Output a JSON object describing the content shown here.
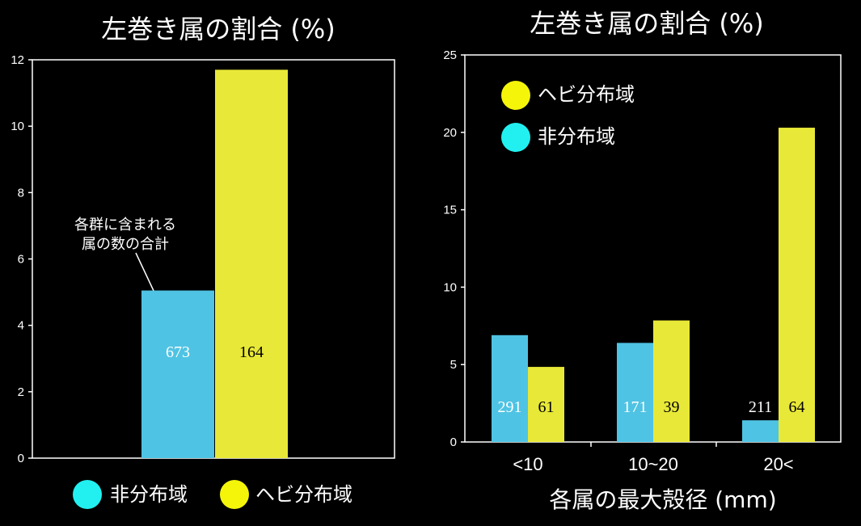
{
  "colors": {
    "blue": "#4fc3e3",
    "yellow": "#e8e838",
    "legend_cyan": "#22f0f0",
    "legend_yellow": "#f5f50a"
  },
  "chart_data": [
    {
      "type": "bar",
      "title": "左巻き属の割合 (%)",
      "ylim": [
        0,
        12
      ],
      "yticks": [
        "0",
        "2",
        "4",
        "6",
        "8",
        "10",
        "12"
      ],
      "series": [
        {
          "name": "非分布域",
          "values": [
            5.05
          ],
          "count_label": "673"
        },
        {
          "name": "ヘビ分布域",
          "values": [
            11.7
          ],
          "count_label": "164"
        }
      ],
      "annotation": [
        "各群に含まれる",
        "属の数の合計"
      ],
      "legend": [
        "非分布域",
        "ヘビ分布域"
      ],
      "legend_position": "bottom"
    },
    {
      "type": "bar",
      "title": "左巻き属の割合 (%)",
      "categories": [
        "<10",
        "10~20",
        "20<"
      ],
      "ylim": [
        0,
        25
      ],
      "yticks": [
        "0",
        "5",
        "10",
        "15",
        "20",
        "25"
      ],
      "xlabel": "各属の最大殻径 (mm)",
      "series": [
        {
          "name": "非分布域",
          "values": [
            6.9,
            6.4,
            1.4
          ],
          "count_labels": [
            "291",
            "171",
            "211"
          ]
        },
        {
          "name": "ヘビ分布域",
          "values": [
            4.85,
            7.85,
            20.3
          ],
          "count_labels": [
            "61",
            "39",
            "64"
          ]
        }
      ],
      "legend": [
        "ヘビ分布域",
        "非分布域"
      ],
      "legend_position": "top-left"
    }
  ]
}
